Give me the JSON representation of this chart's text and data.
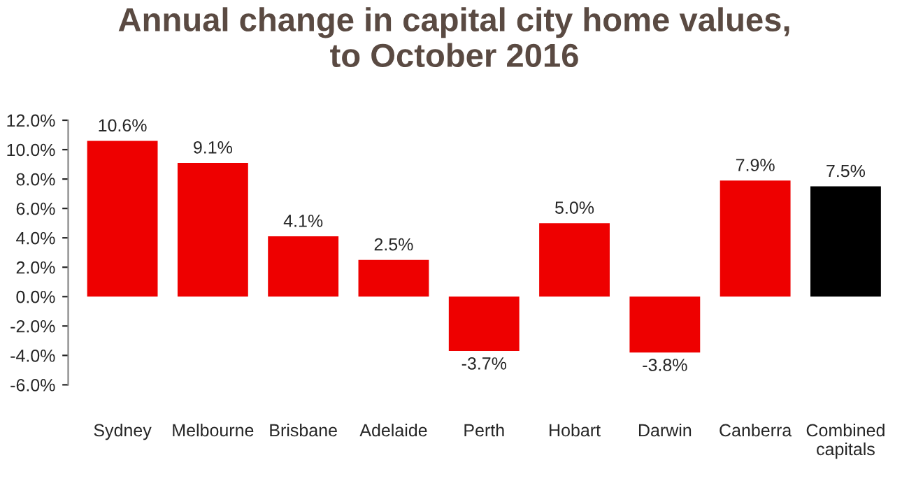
{
  "chart_data": {
    "type": "bar",
    "title": "Annual change in capital city home values,\nto October 2016",
    "categories": [
      "Sydney",
      "Melbourne",
      "Brisbane",
      "Adelaide",
      "Perth",
      "Hobart",
      "Darwin",
      "Canberra",
      "Combined\ncapitals"
    ],
    "values": [
      10.6,
      9.1,
      4.1,
      2.5,
      -3.7,
      5.0,
      -3.8,
      7.9,
      7.5
    ],
    "colors": [
      "#ee0000",
      "#ee0000",
      "#ee0000",
      "#ee0000",
      "#ee0000",
      "#ee0000",
      "#ee0000",
      "#ee0000",
      "#000000"
    ],
    "value_labels": [
      "10.6%",
      "9.1%",
      "4.1%",
      "2.5%",
      "-3.7%",
      "5.0%",
      "-3.8%",
      "7.9%",
      "7.5%"
    ],
    "ylim": [
      -6,
      12
    ],
    "yticks": [
      {
        "value": -6,
        "label": "-6.0%"
      },
      {
        "value": -4,
        "label": "-4.0%"
      },
      {
        "value": -2,
        "label": "-2.0%"
      },
      {
        "value": 0,
        "label": "0.0%"
      },
      {
        "value": 2,
        "label": "2.0%"
      },
      {
        "value": 4,
        "label": "4.0%"
      },
      {
        "value": 6,
        "label": "6.0%"
      },
      {
        "value": 8,
        "label": "8.0%"
      },
      {
        "value": 10,
        "label": "10.0%"
      },
      {
        "value": 12,
        "label": "12.0%"
      }
    ],
    "grid": false,
    "legend": false
  }
}
